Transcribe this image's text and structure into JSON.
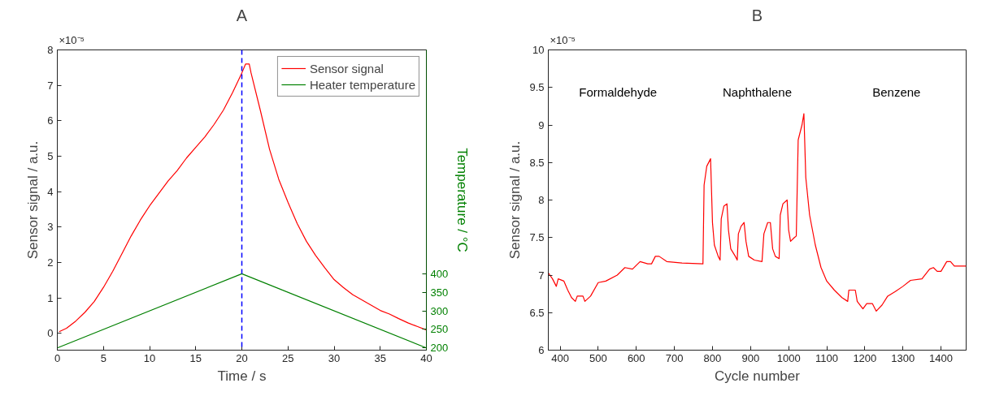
{
  "chart_data": [
    {
      "type": "line",
      "title": "A",
      "xlabel": "Time / s",
      "ylabel": "Sensor signal / a.u.",
      "y2label": "Temperature / °C",
      "xlim": [
        0,
        40
      ],
      "xticks": [
        0,
        5,
        10,
        15,
        20,
        25,
        30,
        35,
        40
      ],
      "ylim": [
        -0.47,
        8
      ],
      "yticks": [
        0,
        1,
        2,
        3,
        4,
        5,
        6,
        7,
        8
      ],
      "y2lim": [
        194,
        1004
      ],
      "y2ticks": [
        200,
        250,
        300,
        350,
        400
      ],
      "grid": false,
      "legend": "top right",
      "annotations": [
        "×10⁻⁵"
      ],
      "ref_lines": [
        {
          "axis": "x",
          "value": 20,
          "color": "#0000ff",
          "line_style": "dashed"
        }
      ],
      "series": [
        {
          "name": "Sensor signal",
          "color": "#ff0000",
          "x": [
            0.2,
            1,
            2,
            3,
            4,
            5,
            6,
            7,
            8,
            9,
            10,
            11,
            12,
            13,
            14,
            15,
            16,
            17,
            18,
            19,
            20,
            20.4,
            20.8,
            21,
            22,
            23,
            24,
            25,
            26,
            27,
            28,
            29,
            30,
            31,
            32,
            33,
            34,
            35,
            36,
            37,
            38,
            39,
            40
          ],
          "values": [
            0.05,
            0.15,
            0.35,
            0.6,
            0.9,
            1.3,
            1.75,
            2.25,
            2.75,
            3.2,
            3.6,
            3.95,
            4.3,
            4.6,
            4.95,
            5.25,
            5.55,
            5.9,
            6.3,
            6.8,
            7.35,
            7.6,
            7.6,
            7.35,
            6.3,
            5.2,
            4.35,
            3.7,
            3.1,
            2.6,
            2.2,
            1.85,
            1.52,
            1.3,
            1.1,
            0.95,
            0.8,
            0.65,
            0.55,
            0.42,
            0.3,
            0.2,
            0.1
          ]
        },
        {
          "name": "Heater temperature",
          "color": "#008000",
          "axis": "y2",
          "x": [
            0,
            20,
            40
          ],
          "values": [
            200,
            400,
            200
          ]
        }
      ]
    },
    {
      "type": "line",
      "title": "B",
      "xlabel": "Cycle number",
      "ylabel": "Sensor signal / a.u.",
      "xlim": [
        369,
        1466
      ],
      "xticks": [
        400,
        500,
        600,
        700,
        800,
        900,
        1000,
        1100,
        1200,
        1300,
        1400
      ],
      "ylim": [
        6,
        10
      ],
      "yticks": [
        6,
        6.5,
        7,
        7.5,
        8,
        8.5,
        9,
        9.5,
        10
      ],
      "grid": false,
      "annotations": [
        "×10⁻⁵",
        "Formaldehyde",
        "Naphthalene",
        "Benzene"
      ],
      "series": [
        {
          "color": "#ff0000",
          "x": [
            369,
            380,
            390,
            395,
            410,
            420,
            430,
            440,
            445,
            460,
            465,
            480,
            500,
            520,
            550,
            570,
            590,
            610,
            630,
            640,
            650,
            660,
            680,
            720,
            775,
            778,
            785,
            795,
            800,
            805,
            815,
            820,
            823,
            830,
            838,
            842,
            848,
            860,
            865,
            868,
            875,
            883,
            888,
            895,
            910,
            930,
            935,
            945,
            952,
            958,
            965,
            975,
            978,
            985,
            996,
            1000,
            1005,
            1015,
            1020,
            1025,
            1035,
            1040,
            1045,
            1055,
            1070,
            1085,
            1100,
            1120,
            1140,
            1155,
            1158,
            1175,
            1180,
            1195,
            1205,
            1220,
            1230,
            1245,
            1260,
            1280,
            1300,
            1320,
            1350,
            1370,
            1380,
            1390,
            1400,
            1415,
            1425,
            1435,
            1466
          ],
          "values": [
            7.03,
            6.95,
            6.85,
            6.95,
            6.92,
            6.8,
            6.7,
            6.65,
            6.72,
            6.72,
            6.65,
            6.72,
            6.9,
            6.92,
            7.0,
            7.1,
            7.08,
            7.18,
            7.15,
            7.15,
            7.25,
            7.25,
            7.18,
            7.16,
            7.15,
            8.2,
            8.45,
            8.55,
            7.7,
            7.4,
            7.25,
            7.2,
            7.75,
            7.92,
            7.95,
            7.6,
            7.35,
            7.25,
            7.2,
            7.55,
            7.65,
            7.7,
            7.45,
            7.25,
            7.2,
            7.18,
            7.55,
            7.7,
            7.7,
            7.35,
            7.25,
            7.22,
            7.8,
            7.95,
            8.0,
            7.6,
            7.45,
            7.5,
            7.52,
            8.8,
            9.0,
            9.15,
            8.3,
            7.8,
            7.4,
            7.1,
            6.92,
            6.8,
            6.7,
            6.65,
            6.8,
            6.8,
            6.65,
            6.55,
            6.62,
            6.62,
            6.52,
            6.6,
            6.72,
            6.78,
            6.85,
            6.93,
            6.95,
            7.08,
            7.1,
            7.05,
            7.05,
            7.18,
            7.18,
            7.12,
            7.12
          ]
        }
      ]
    }
  ]
}
